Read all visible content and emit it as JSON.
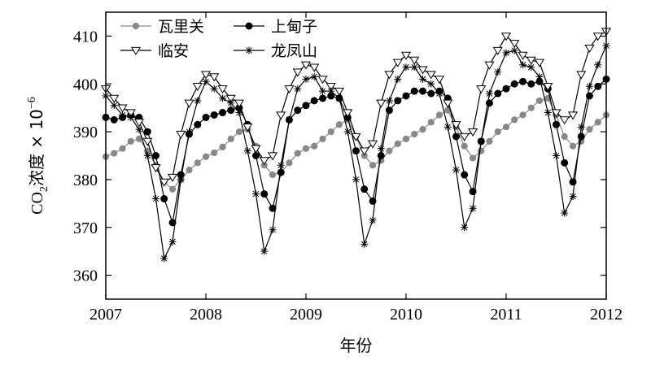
{
  "chart_data": {
    "type": "line",
    "xlabel": "年份",
    "ylabel_main": "CO",
    "ylabel_sub": "2",
    "ylabel_unit": "浓度 × 10",
    "ylabel_exp": "−6",
    "xlim": [
      2007,
      2012
    ],
    "ylim": [
      355,
      415
    ],
    "x_ticks": [
      2007,
      2008,
      2009,
      2010,
      2011,
      2012
    ],
    "x_tick_labels": [
      "2007",
      "2008",
      "2009",
      "2010",
      "2011",
      "2012"
    ],
    "y_ticks": [
      360,
      370,
      380,
      390,
      400,
      410
    ],
    "y_tick_labels": [
      "360",
      "370",
      "380",
      "390",
      "400",
      "410"
    ],
    "grid": false,
    "legend_position": "top-left",
    "x": [
      2007.0,
      2007.083,
      2007.167,
      2007.25,
      2007.333,
      2007.417,
      2007.5,
      2007.583,
      2007.667,
      2007.75,
      2007.833,
      2007.917,
      2008.0,
      2008.083,
      2008.167,
      2008.25,
      2008.333,
      2008.417,
      2008.5,
      2008.583,
      2008.667,
      2008.75,
      2008.833,
      2008.917,
      2009.0,
      2009.083,
      2009.167,
      2009.25,
      2009.333,
      2009.417,
      2009.5,
      2009.583,
      2009.667,
      2009.75,
      2009.833,
      2009.917,
      2010.0,
      2010.083,
      2010.167,
      2010.25,
      2010.333,
      2010.417,
      2010.5,
      2010.583,
      2010.667,
      2010.75,
      2010.833,
      2010.917,
      2011.0,
      2011.083,
      2011.167,
      2011.25,
      2011.333,
      2011.417,
      2011.5,
      2011.583,
      2011.667,
      2011.75,
      2011.833,
      2011.917,
      2012.0
    ],
    "series": [
      {
        "name": "瓦里关",
        "marker": "circle-gray",
        "color": "#888888",
        "values": [
          384.8,
          385.5,
          386.5,
          388.0,
          388.5,
          386.0,
          383.0,
          379.5,
          378.0,
          380.0,
          382.0,
          383.5,
          384.8,
          385.6,
          386.8,
          388.5,
          390.0,
          390.5,
          387.0,
          383.0,
          381.0,
          381.5,
          383.5,
          385.5,
          386.5,
          387.0,
          388.5,
          390.0,
          391.5,
          392.5,
          389.0,
          385.0,
          383.0,
          384.0,
          386.0,
          387.5,
          388.5,
          389.5,
          390.5,
          392.0,
          393.5,
          394.5,
          391.0,
          387.0,
          384.5,
          386.0,
          388.0,
          390.0,
          391.0,
          392.5,
          393.5,
          395.0,
          396.5,
          397.0,
          393.5,
          389.0,
          387.0,
          388.0,
          390.5,
          392.0,
          393.5
        ]
      },
      {
        "name": "上甸子",
        "marker": "circle-black",
        "color": "#000000",
        "values": [
          393.0,
          392.5,
          393.0,
          393.5,
          393.0,
          390.0,
          385.0,
          376.0,
          371.0,
          381.0,
          389.5,
          391.5,
          393.0,
          393.5,
          394.0,
          394.5,
          395.0,
          391.5,
          385.0,
          377.0,
          374.0,
          381.5,
          392.5,
          394.5,
          395.5,
          396.5,
          397.0,
          397.5,
          397.0,
          393.0,
          386.0,
          378.0,
          375.5,
          385.0,
          394.5,
          396.5,
          397.5,
          398.5,
          398.5,
          398.0,
          398.5,
          397.0,
          389.0,
          381.0,
          377.5,
          388.0,
          396.0,
          398.0,
          399.0,
          400.0,
          400.5,
          400.0,
          400.5,
          399.0,
          391.5,
          383.5,
          379.5,
          389.0,
          397.5,
          399.5,
          401.0
        ]
      },
      {
        "name": "临安",
        "marker": "triangle-down",
        "color": "#000000",
        "values": [
          399.0,
          397.0,
          395.0,
          394.0,
          392.0,
          388.0,
          382.5,
          379.5,
          380.5,
          389.5,
          396.0,
          399.5,
          402.0,
          401.5,
          399.0,
          397.0,
          396.0,
          391.0,
          386.5,
          384.0,
          385.0,
          393.5,
          399.0,
          402.5,
          404.0,
          403.5,
          401.0,
          399.5,
          398.5,
          394.0,
          389.0,
          386.0,
          387.5,
          396.0,
          402.0,
          404.5,
          406.0,
          405.0,
          403.0,
          402.0,
          401.0,
          396.0,
          391.5,
          389.0,
          390.0,
          399.0,
          404.0,
          407.0,
          410.0,
          408.5,
          406.0,
          405.0,
          404.5,
          399.5,
          394.0,
          392.5,
          393.5,
          402.0,
          407.5,
          410.0,
          411.0
        ]
      },
      {
        "name": "龙凤山",
        "marker": "star",
        "color": "#000000",
        "values": [
          397.5,
          395.5,
          393.5,
          393.0,
          390.5,
          385.0,
          376.0,
          363.5,
          367.0,
          380.0,
          390.0,
          396.5,
          400.5,
          399.0,
          397.0,
          396.0,
          394.0,
          386.0,
          377.0,
          365.0,
          369.5,
          383.0,
          392.5,
          399.0,
          401.0,
          401.5,
          398.5,
          398.5,
          397.0,
          390.0,
          380.0,
          366.5,
          371.5,
          386.5,
          396.5,
          401.0,
          403.5,
          403.5,
          401.0,
          400.0,
          398.0,
          391.0,
          382.0,
          370.0,
          374.0,
          388.0,
          398.0,
          402.5,
          406.5,
          407.0,
          404.0,
          403.5,
          401.5,
          394.0,
          385.0,
          373.0,
          376.5,
          391.0,
          399.5,
          404.0,
          408.0
        ]
      }
    ]
  }
}
